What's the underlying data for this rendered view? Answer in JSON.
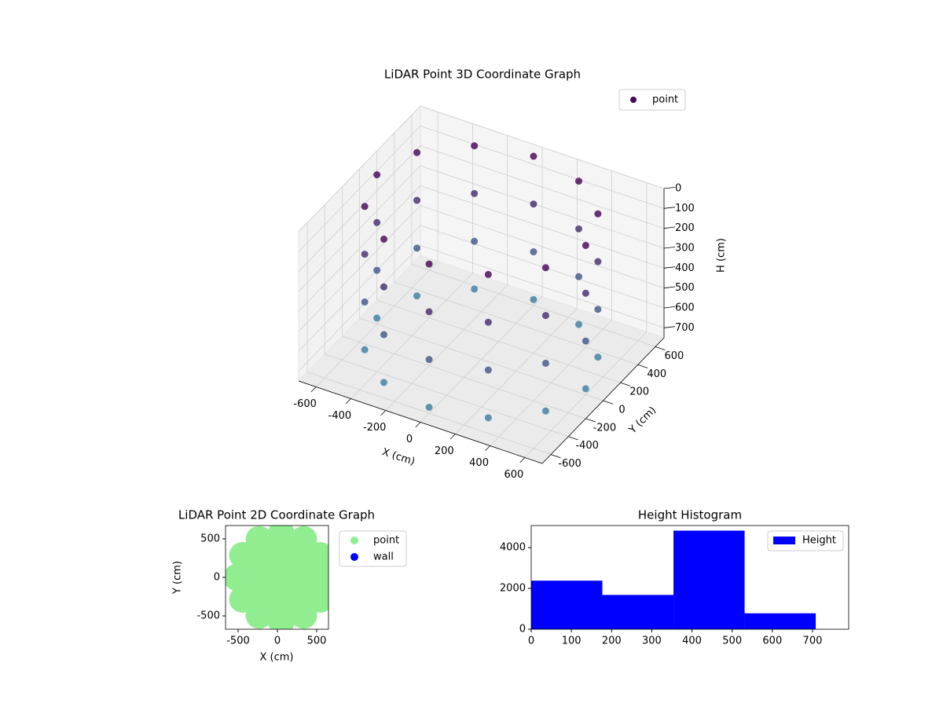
{
  "chart_data": [
    {
      "type": "scatter3d",
      "title": "LiDAR Point 3D Coordinate Graph",
      "x_label": "X (cm)",
      "y_label": "Y (cm)",
      "z_label": "H (cm)",
      "series": [
        {
          "name": "point",
          "color": "#46085c",
          "x": [
            600,
            520,
            300,
            0,
            -300,
            -520,
            -600,
            -520,
            -300,
            0,
            300,
            520,
            600,
            520,
            300,
            0,
            -300,
            -520,
            -600,
            -520,
            -300,
            0,
            300,
            520,
            600,
            520,
            300,
            0,
            -300,
            -520,
            -600,
            -520,
            -300,
            0,
            300,
            520,
            600,
            520,
            300,
            0,
            -300,
            -520,
            -600,
            -520,
            -300,
            0,
            300,
            520
          ],
          "y": [
            0,
            300,
            520,
            600,
            520,
            300,
            0,
            -300,
            -520,
            -600,
            -520,
            -300,
            0,
            300,
            520,
            600,
            520,
            300,
            0,
            -300,
            -520,
            -600,
            -520,
            -300,
            0,
            300,
            520,
            600,
            520,
            300,
            0,
            -300,
            -520,
            -600,
            -520,
            -300,
            0,
            300,
            520,
            600,
            520,
            300,
            0,
            -300,
            -520,
            -600,
            -520,
            -300
          ],
          "z": [
            0,
            0,
            0,
            0,
            0,
            0,
            0,
            0,
            0,
            0,
            0,
            0,
            240,
            240,
            240,
            240,
            240,
            240,
            240,
            240,
            240,
            240,
            240,
            240,
            480,
            480,
            480,
            480,
            480,
            480,
            480,
            480,
            480,
            480,
            480,
            480,
            720,
            720,
            720,
            720,
            720,
            720,
            720,
            720,
            720,
            720,
            720,
            720
          ]
        }
      ],
      "colors": [
        "#440154",
        "#3b82a3"
      ],
      "xlim": [
        -700,
        700
      ],
      "ylim": [
        -700,
        700
      ],
      "zlim": [
        750,
        0
      ],
      "xticks": [
        -600,
        -400,
        -200,
        0,
        200,
        400,
        600
      ],
      "yticks": [
        -600,
        -400,
        -200,
        0,
        200,
        400,
        600
      ],
      "zticks": [
        0,
        100,
        200,
        300,
        400,
        500,
        600,
        700
      ]
    },
    {
      "type": "scatter",
      "title": "LiDAR Point 2D Coordinate Graph",
      "x_label": "X (cm)",
      "y_label": "Y (cm)",
      "series": [
        {
          "name": "point",
          "color": "#90ee90",
          "x": [
            620,
            544,
            335,
            50,
            -235,
            -444,
            -520,
            -444,
            -235,
            50,
            335,
            544,
            430,
            319,
            50,
            -219,
            -330,
            -219,
            50,
            319,
            240,
            50,
            -140,
            50,
            50
          ],
          "y": [
            0,
            285,
            494,
            570,
            494,
            285,
            0,
            -285,
            -494,
            -570,
            -494,
            -285,
            0,
            269,
            380,
            269,
            0,
            -269,
            -380,
            -269,
            0,
            190,
            0,
            -190,
            0
          ]
        },
        {
          "name": "wall",
          "color": "#0000ff",
          "x": [],
          "y": []
        }
      ],
      "xlim": [
        -660,
        650
      ],
      "ylim": [
        -673,
        673
      ],
      "xticks": [
        -500,
        0,
        500
      ],
      "yticks": [
        -500,
        0,
        500
      ]
    },
    {
      "type": "histogram",
      "title": "Height Histogram",
      "series": [
        {
          "name": "Height",
          "color": "#0000ff",
          "bins": [
            0,
            177,
            354,
            531,
            708
          ],
          "values": [
            2380,
            1680,
            4830,
            780
          ]
        }
      ],
      "xlim": [
        0,
        790
      ],
      "ylim": [
        0,
        5080
      ],
      "xticks": [
        0,
        100,
        200,
        300,
        400,
        500,
        600,
        700
      ],
      "yticks": [
        0,
        2000,
        4000
      ]
    }
  ]
}
